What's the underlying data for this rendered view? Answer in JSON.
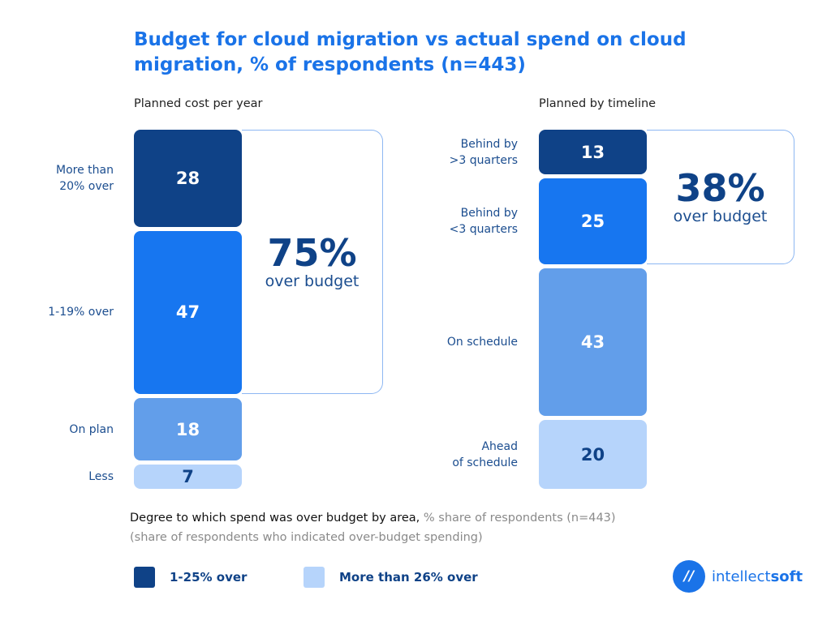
{
  "title": "Budget for cloud migration vs actual spend on cloud migration, % of respondents (n=443)",
  "colors": {
    "dark": "#0f4287",
    "blue": "#1776f0",
    "mid": "#629eea",
    "light": "#b6d4fb",
    "title": "#1a73e8"
  },
  "chart_data": [
    {
      "type": "bar",
      "stacked": true,
      "title": "Planned cost per year",
      "categories": [
        "More than\n20% over",
        "1-19% over",
        "On plan",
        "Less"
      ],
      "values": [
        28,
        47,
        18,
        7
      ],
      "value_labels": [
        "28",
        "47",
        "18",
        "7"
      ],
      "callout": {
        "value": "75%",
        "label": "over budget"
      }
    },
    {
      "type": "bar",
      "stacked": true,
      "title": "Planned by timeline",
      "categories": [
        "Behind by\n>3 quarters",
        "Behind by\n<3 quarters",
        "On schedule",
        "Ahead\nof schedule"
      ],
      "values": [
        13,
        25,
        43,
        20
      ],
      "value_labels": [
        "13",
        "25",
        "43",
        "20"
      ],
      "callout": {
        "value": "38%",
        "label": "over budget"
      }
    }
  ],
  "note": {
    "main": "Degree to which spend was over budget  by area,",
    "grey": " % share of respondents (n=443)",
    "line2": "(share of respondents who indicated over-budget spending)"
  },
  "legend": [
    {
      "label": "1-25% over",
      "color": "#0f4287"
    },
    {
      "label": "More than 26% over",
      "color": "#b6d4fb"
    }
  ],
  "logo": {
    "mark": "IT",
    "text_light": "intellect",
    "text_bold": "soft"
  }
}
